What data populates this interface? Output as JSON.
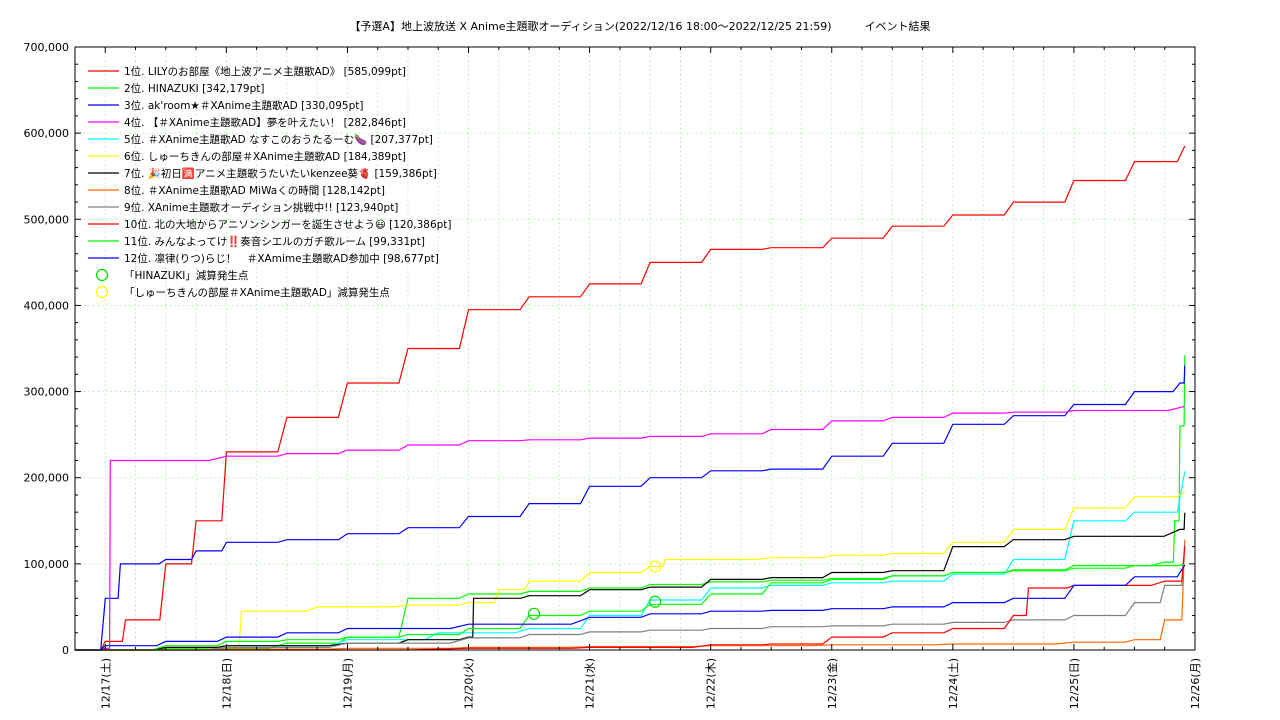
{
  "chart_data": {
    "type": "line",
    "title": "【予選A】地上波放送 X Anime主題歌オーディション(2022/12/16 18:00〜2022/12/25 21:59)　　　イベント結果",
    "xlabel": "",
    "ylabel": "",
    "grid": true,
    "legend_position": "top-left",
    "x_range": [
      "2022/12/16 18:00",
      "2022/12/26 00:00"
    ],
    "ylim": [
      0,
      700000
    ],
    "x_tick_labels": [
      "12/17(土)",
      "12/18(日)",
      "12/19(月)",
      "12/20(火)",
      "12/21(水)",
      "12/22(木)",
      "12/23(金)",
      "12/24(土)",
      "12/25(日)",
      "12/26(月)"
    ],
    "y_tick_labels": [
      "0",
      "100,000",
      "200,000",
      "300,000",
      "400,000",
      "500,000",
      "600,000",
      "700,000"
    ],
    "series": [
      {
        "name": "1位. LILYのお部屋《地上波アニメ主題歌AD》 [585,099pt]",
        "color": "#ff0000",
        "points": [
          [
            "12/16 18:00",
            0
          ],
          [
            "12/17 00:00",
            10000
          ],
          [
            "12/17 04:00",
            35000
          ],
          [
            "12/17 12:00",
            100000
          ],
          [
            "12/17 18:00",
            150000
          ],
          [
            "12/18 00:00",
            230000
          ],
          [
            "12/18 12:00",
            270000
          ],
          [
            "12/19 00:00",
            310000
          ],
          [
            "12/19 12:00",
            350000
          ],
          [
            "12/20 00:00",
            395000
          ],
          [
            "12/20 12:00",
            410000
          ],
          [
            "12/21 00:00",
            425000
          ],
          [
            "12/21 12:00",
            450000
          ],
          [
            "12/22 00:00",
            465000
          ],
          [
            "12/22 12:00",
            467000
          ],
          [
            "12/23 00:00",
            478000
          ],
          [
            "12/23 12:00",
            492000
          ],
          [
            "12/24 00:00",
            505000
          ],
          [
            "12/24 12:00",
            520000
          ],
          [
            "12/25 00:00",
            545000
          ],
          [
            "12/25 12:00",
            567000
          ],
          [
            "12/25 21:59",
            585099
          ]
        ]
      },
      {
        "name": "2位. HINAZUKI [342,179pt]",
        "color": "#00ff00",
        "points": [
          [
            "12/16 18:00",
            0
          ],
          [
            "12/17 12:00",
            2000
          ],
          [
            "12/18 12:00",
            8000
          ],
          [
            "12/19 00:00",
            15000
          ],
          [
            "12/19 12:00",
            60000
          ],
          [
            "12/20 00:00",
            65000
          ],
          [
            "12/20 12:00",
            68000
          ],
          [
            "12/21 00:00",
            72000
          ],
          [
            "12/21 12:00",
            76000
          ],
          [
            "12/22 00:00",
            79000
          ],
          [
            "12/22 12:00",
            81000
          ],
          [
            "12/23 00:00",
            83000
          ],
          [
            "12/23 12:00",
            86000
          ],
          [
            "12/24 00:00",
            90000
          ],
          [
            "12/24 12:00",
            93000
          ],
          [
            "12/25 00:00",
            98000
          ],
          [
            "12/25 18:00",
            102000
          ],
          [
            "12/25 20:00",
            150000
          ],
          [
            "12/25 21:00",
            260000
          ],
          [
            "12/25 21:59",
            342179
          ]
        ]
      },
      {
        "name": "3位. ak'room★＃XAnime主題歌AD [330,095pt]",
        "color": "#0000ff",
        "points": [
          [
            "12/16 18:00",
            0
          ],
          [
            "12/17 00:00",
            60000
          ],
          [
            "12/17 03:00",
            100000
          ],
          [
            "12/17 12:00",
            105000
          ],
          [
            "12/17 18:00",
            115000
          ],
          [
            "12/18 00:00",
            125000
          ],
          [
            "12/18 12:00",
            128000
          ],
          [
            "12/19 00:00",
            135000
          ],
          [
            "12/19 12:00",
            142000
          ],
          [
            "12/20 00:00",
            155000
          ],
          [
            "12/20 12:00",
            170000
          ],
          [
            "12/21 00:00",
            190000
          ],
          [
            "12/21 12:00",
            200000
          ],
          [
            "12/22 00:00",
            208000
          ],
          [
            "12/22 12:00",
            210000
          ],
          [
            "12/23 00:00",
            225000
          ],
          [
            "12/23 12:00",
            240000
          ],
          [
            "12/24 00:00",
            262000
          ],
          [
            "12/24 12:00",
            272000
          ],
          [
            "12/25 00:00",
            285000
          ],
          [
            "12/25 12:00",
            300000
          ],
          [
            "12/25 21:00",
            310000
          ],
          [
            "12/25 21:59",
            330095
          ]
        ]
      },
      {
        "name": "4位. 【＃XAnime主題歌AD】夢を叶えたい！ [282,846pt]",
        "color": "#ff00ff",
        "points": [
          [
            "12/16 18:00",
            0
          ],
          [
            "12/17 00:00",
            2000
          ],
          [
            "12/17 01:00",
            220000
          ],
          [
            "12/18 00:00",
            225000
          ],
          [
            "12/18 12:00",
            228000
          ],
          [
            "12/19 00:00",
            232000
          ],
          [
            "12/19 12:00",
            238000
          ],
          [
            "12/20 00:00",
            243000
          ],
          [
            "12/20 12:00",
            244000
          ],
          [
            "12/21 00:00",
            246000
          ],
          [
            "12/21 12:00",
            248000
          ],
          [
            "12/22 00:00",
            251000
          ],
          [
            "12/22 12:00",
            256000
          ],
          [
            "12/23 00:00",
            266000
          ],
          [
            "12/23 12:00",
            270000
          ],
          [
            "12/24 00:00",
            275000
          ],
          [
            "12/24 12:00",
            276000
          ],
          [
            "12/25 00:00",
            278000
          ],
          [
            "12/25 21:59",
            282846
          ]
        ]
      },
      {
        "name": "5位. ＃XAnime主題歌AD なすこのおうたるーむ🍆 [207,377pt]",
        "color": "#00ffff",
        "points": [
          [
            "12/16 18:00",
            0
          ],
          [
            "12/18 00:00",
            5000
          ],
          [
            "12/19 00:00",
            12000
          ],
          [
            "12/19 18:00",
            20000
          ],
          [
            "12/20 12:00",
            25000
          ],
          [
            "12/21 00:00",
            40000
          ],
          [
            "12/21 12:00",
            58000
          ],
          [
            "12/22 00:00",
            72000
          ],
          [
            "12/22 12:00",
            75000
          ],
          [
            "12/23 00:00",
            78000
          ],
          [
            "12/23 12:00",
            80000
          ],
          [
            "12/24 00:00",
            88000
          ],
          [
            "12/24 12:00",
            105000
          ],
          [
            "12/25 00:00",
            150000
          ],
          [
            "12/25 12:00",
            160000
          ],
          [
            "12/25 21:59",
            207377
          ]
        ]
      },
      {
        "name": "6位. しゅーちきんの部屋＃XAnime主題歌AD [184,389pt]",
        "color": "#ffff00",
        "points": [
          [
            "12/16 18:00",
            0
          ],
          [
            "12/18 00:00",
            5000
          ],
          [
            "12/18 03:00",
            45000
          ],
          [
            "12/18 18:00",
            50000
          ],
          [
            "12/19 12:00",
            52000
          ],
          [
            "12/20 00:00",
            55000
          ],
          [
            "12/20 06:00",
            70000
          ],
          [
            "12/20 12:00",
            80000
          ],
          [
            "12/21 00:00",
            90000
          ],
          [
            "12/21 12:00",
            97000
          ],
          [
            "12/21 15:00",
            105000
          ],
          [
            "12/22 12:00",
            107000
          ],
          [
            "12/23 00:00",
            110000
          ],
          [
            "12/23 12:00",
            112000
          ],
          [
            "12/24 00:00",
            125000
          ],
          [
            "12/24 12:00",
            140000
          ],
          [
            "12/25 00:00",
            165000
          ],
          [
            "12/25 12:00",
            178000
          ],
          [
            "12/25 21:59",
            184389
          ]
        ]
      },
      {
        "name": "7位. 🎉初日🈵アニメ主題歌うたいたいkenzee葵🫀 [159,386pt]",
        "color": "#000000",
        "points": [
          [
            "12/16 18:00",
            0
          ],
          [
            "12/17 12:00",
            3000
          ],
          [
            "12/18 00:00",
            5000
          ],
          [
            "12/19 00:00",
            8000
          ],
          [
            "12/19 12:00",
            12000
          ],
          [
            "12/20 00:00",
            15000
          ],
          [
            "12/20 01:00",
            60000
          ],
          [
            "12/20 12:00",
            63000
          ],
          [
            "12/21 00:00",
            70000
          ],
          [
            "12/21 12:00",
            73000
          ],
          [
            "12/22 00:00",
            82000
          ],
          [
            "12/22 12:00",
            84000
          ],
          [
            "12/23 00:00",
            90000
          ],
          [
            "12/23 12:00",
            92000
          ],
          [
            "12/24 00:00",
            120000
          ],
          [
            "12/24 12:00",
            128000
          ],
          [
            "12/25 00:00",
            132000
          ],
          [
            "12/25 21:00",
            140000
          ],
          [
            "12/25 21:59",
            159386
          ]
        ]
      },
      {
        "name": "8位. ＃XAnime主題歌AD MiWaくの時間 [128,142pt]",
        "color": "#ff6600",
        "points": [
          [
            "12/16 18:00",
            0
          ],
          [
            "12/18 00:00",
            1000
          ],
          [
            "12/19 00:00",
            2000
          ],
          [
            "12/20 00:00",
            3000
          ],
          [
            "12/21 00:00",
            4000
          ],
          [
            "12/22 00:00",
            5000
          ],
          [
            "12/23 00:00",
            6000
          ],
          [
            "12/24 00:00",
            7000
          ],
          [
            "12/25 00:00",
            9000
          ],
          [
            "12/25 12:00",
            12000
          ],
          [
            "12/25 18:00",
            35000
          ],
          [
            "12/25 21:59",
            128142
          ]
        ]
      },
      {
        "name": "9位. XAnime主題歌オーディション挑戦中!! [123,940pt]",
        "color": "#808080",
        "points": [
          [
            "12/16 18:00",
            0
          ],
          [
            "12/18 00:00",
            3000
          ],
          [
            "12/19 00:00",
            8000
          ],
          [
            "12/20 00:00",
            14000
          ],
          [
            "12/20 12:00",
            18000
          ],
          [
            "12/21 00:00",
            21000
          ],
          [
            "12/21 12:00",
            23000
          ],
          [
            "12/22 00:00",
            25000
          ],
          [
            "12/22 12:00",
            27000
          ],
          [
            "12/23 00:00",
            28000
          ],
          [
            "12/23 12:00",
            30000
          ],
          [
            "12/24 00:00",
            32000
          ],
          [
            "12/24 12:00",
            35000
          ],
          [
            "12/25 00:00",
            40000
          ],
          [
            "12/25 12:00",
            55000
          ],
          [
            "12/25 18:00",
            75000
          ],
          [
            "12/25 21:59",
            123940
          ]
        ]
      },
      {
        "name": "10位. 北の大地からアニソンシンガーを誕生させよう😃 [120,386pt]",
        "color": "#ff0000",
        "points": [
          [
            "12/16 18:00",
            0
          ],
          [
            "12/20 00:00",
            2000
          ],
          [
            "12/21 00:00",
            3000
          ],
          [
            "12/22 00:00",
            6000
          ],
          [
            "12/22 12:00",
            7000
          ],
          [
            "12/23 00:00",
            15000
          ],
          [
            "12/23 12:00",
            20000
          ],
          [
            "12/24 00:00",
            25000
          ],
          [
            "12/24 12:00",
            40000
          ],
          [
            "12/24 15:00",
            72000
          ],
          [
            "12/25 00:00",
            75000
          ],
          [
            "12/25 18:00",
            80000
          ],
          [
            "12/25 21:59",
            120386
          ]
        ]
      },
      {
        "name": "11位. みんなよってけ‼️奏音シエルのガチ歌ルーム [99,331pt]",
        "color": "#00ff00",
        "points": [
          [
            "12/16 18:00",
            0
          ],
          [
            "12/17 12:00",
            5000
          ],
          [
            "12/18 00:00",
            10000
          ],
          [
            "12/18 12:00",
            12000
          ],
          [
            "12/19 00:00",
            15000
          ],
          [
            "12/19 12:00",
            18000
          ],
          [
            "12/20 00:00",
            25000
          ],
          [
            "12/20 12:00",
            40000
          ],
          [
            "12/21 00:00",
            45000
          ],
          [
            "12/21 12:00",
            53000
          ],
          [
            "12/22 00:00",
            65000
          ],
          [
            "12/22 12:00",
            78000
          ],
          [
            "12/23 00:00",
            82000
          ],
          [
            "12/23 12:00",
            86000
          ],
          [
            "12/24 00:00",
            90000
          ],
          [
            "12/24 12:00",
            92000
          ],
          [
            "12/25 00:00",
            95000
          ],
          [
            "12/25 12:00",
            98000
          ],
          [
            "12/25 21:59",
            99331
          ]
        ]
      },
      {
        "name": "12位. 凛律(りつ)らじ！　＃XAmime主題歌AD参加中 [98,677pt]",
        "color": "#0000ff",
        "points": [
          [
            "12/16 18:00",
            0
          ],
          [
            "12/17 00:00",
            5000
          ],
          [
            "12/17 12:00",
            10000
          ],
          [
            "12/18 00:00",
            15000
          ],
          [
            "12/18 12:00",
            20000
          ],
          [
            "12/19 00:00",
            25000
          ],
          [
            "12/20 00:00",
            30000
          ],
          [
            "12/21 00:00",
            38000
          ],
          [
            "12/21 12:00",
            42000
          ],
          [
            "12/22 00:00",
            45000
          ],
          [
            "12/22 12:00",
            46000
          ],
          [
            "12/23 00:00",
            48000
          ],
          [
            "12/23 12:00",
            50000
          ],
          [
            "12/24 00:00",
            55000
          ],
          [
            "12/24 12:00",
            60000
          ],
          [
            "12/25 00:00",
            75000
          ],
          [
            "12/25 12:00",
            85000
          ],
          [
            "12/25 21:59",
            98677
          ]
        ]
      }
    ],
    "markers": [
      {
        "name": "「HINAZUKI」減算発生点",
        "color": "#00dd00",
        "points": [
          [
            "12/20 13:00",
            42000
          ],
          [
            "12/21 13:00",
            56000
          ]
        ]
      },
      {
        "name": "「しゅーちきんの部屋＃XAnime主題歌AD」減算発生点",
        "color": "#ffff00",
        "points": [
          [
            "12/21 13:00",
            97000
          ]
        ]
      }
    ]
  }
}
